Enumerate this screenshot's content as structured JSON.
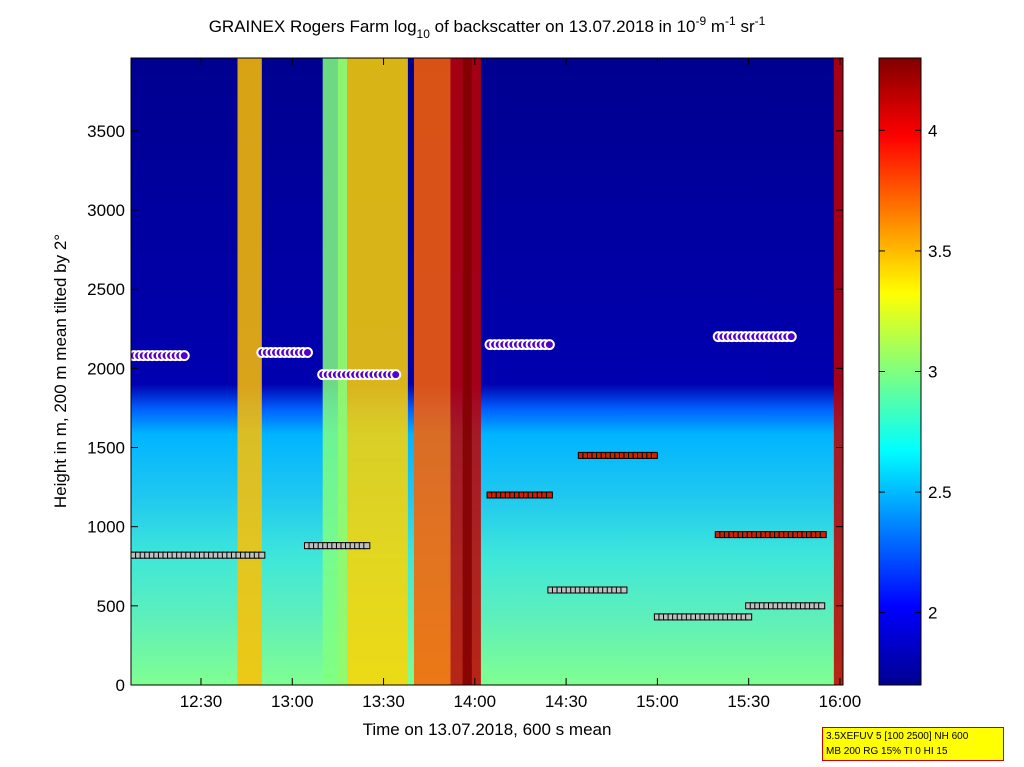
{
  "chart_data": {
    "type": "heatmap",
    "title": {
      "part1": "GRAINEX Rogers Farm log",
      "sub": "10",
      "part2": " of backscatter on 13.07.2018 in 10",
      "exp1": "-9",
      "part3": " m",
      "exp2": "-1",
      "part4": " sr",
      "exp3": "-1"
    },
    "xlabel": "Time on 13.07.2018, 600 s mean",
    "ylabel": "Height in m, 200 m mean tilted by 2°",
    "x_ticks": [
      "12:30",
      "13:00",
      "13:30",
      "14:00",
      "14:30",
      "15:00",
      "15:30",
      "16:00"
    ],
    "x_tick_minutes": [
      750,
      780,
      810,
      840,
      870,
      900,
      930,
      960
    ],
    "xlim_minutes": [
      727,
      961
    ],
    "y_ticks": [
      "0",
      "500",
      "1000",
      "1500",
      "2000",
      "2500",
      "3000",
      "3500"
    ],
    "y_tick_values": [
      0,
      500,
      1000,
      1500,
      2000,
      2500,
      3000,
      3500
    ],
    "ylim": [
      0,
      3960
    ],
    "colorbar": {
      "ticks": [
        "2",
        "2.5",
        "3",
        "3.5",
        "4"
      ],
      "tick_values": [
        2,
        2.5,
        3,
        3.5,
        4
      ],
      "range": [
        1.7,
        4.3
      ],
      "colormap": "jet"
    },
    "layers": {
      "cloud_base_height": [
        {
          "start": "12:05",
          "end": "12:25",
          "height": 2080
        },
        {
          "start": "12:50",
          "end": "13:05",
          "height": 2100
        },
        {
          "start": "13:10",
          "end": "13:35",
          "height": 1960
        },
        {
          "start": "14:05",
          "end": "14:25",
          "height": 2150
        },
        {
          "start": "15:20",
          "end": "15:45",
          "height": 2200
        }
      ],
      "boundary_layer_height": [
        {
          "start": "12:05",
          "end": "12:50",
          "height": 820
        },
        {
          "start": "13:05",
          "end": "13:25",
          "height": 880
        },
        {
          "start": "14:25",
          "end": "14:50",
          "height": 600
        },
        {
          "start": "15:00",
          "end": "15:30",
          "height": 430
        },
        {
          "start": "15:30",
          "end": "15:55",
          "height": 500
        }
      ],
      "residual_layer_height": [
        {
          "start": "14:05",
          "end": "14:25",
          "height": 1200
        },
        {
          "start": "14:35",
          "end": "15:00",
          "height": 1450
        },
        {
          "start": "15:20",
          "end": "15:55",
          "height": 950
        }
      ]
    },
    "grid": false,
    "legend": "none"
  },
  "param_box": {
    "line1": "3.5XEFUV 5 [100 2500] NH 600",
    "line2": "MB 200 RG 15% TI 0 HI 15"
  },
  "colors": {
    "param_box_bg": "#ffff00",
    "param_box_border": "#cc0000",
    "cloud_marker_fill": "#5500cc",
    "cloud_marker_ring": "#ffffff"
  }
}
